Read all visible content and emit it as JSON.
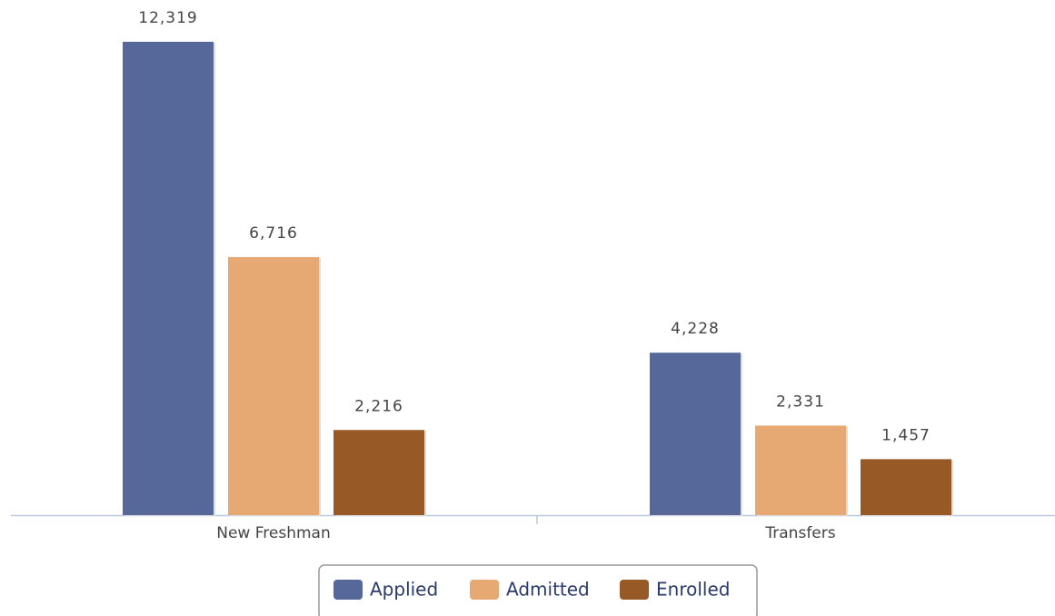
{
  "chart_data": {
    "type": "bar",
    "categories": [
      "New Freshman",
      "Transfers"
    ],
    "series": [
      {
        "name": "Applied",
        "color": "#56689a",
        "values": [
          12319,
          4228
        ],
        "value_labels": [
          "12,319",
          "4,228"
        ]
      },
      {
        "name": "Admitted",
        "color": "#e6a973",
        "values": [
          6716,
          2331
        ],
        "value_labels": [
          "6,716",
          "2,331"
        ]
      },
      {
        "name": "Enrolled",
        "color": "#975926",
        "values": [
          2216,
          1457
        ],
        "value_labels": [
          "2,216",
          "1,457"
        ]
      }
    ],
    "legend": "bottom"
  }
}
